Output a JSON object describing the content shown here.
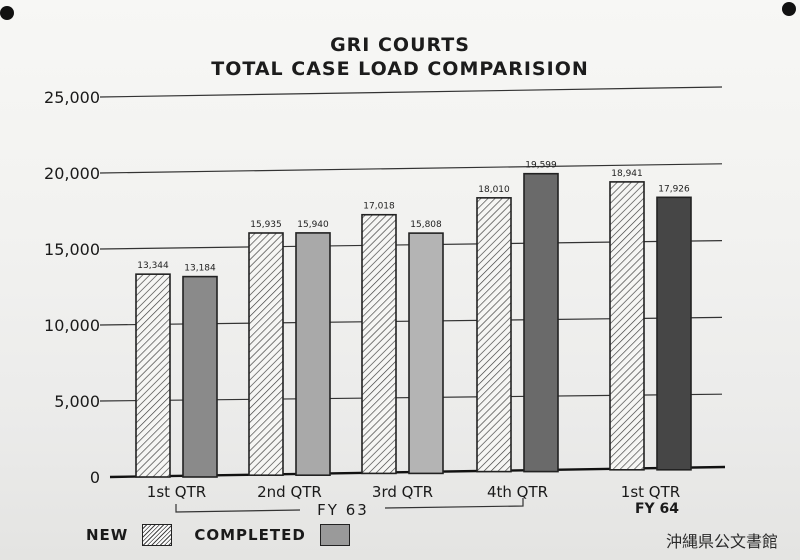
{
  "chart_data": {
    "type": "bar",
    "title": "GRI COURTS",
    "subtitle": "TOTAL CASE LOAD COMPARISION",
    "categories": [
      "1st QTR",
      "2nd QTR",
      "3rd QTR",
      "4th QTR",
      "1st QTR"
    ],
    "group_labels": [
      {
        "label": "FY 63"
      },
      {
        "label": "FY 64"
      }
    ],
    "yticks": [
      "0",
      "5,000",
      "10,000",
      "15,000",
      "20,000",
      "25,000"
    ],
    "ylim": [
      0,
      25000
    ],
    "grid": true,
    "legend_position": "bottom-left",
    "series": [
      {
        "name": "NEW",
        "values": [
          13344,
          15935,
          17018,
          18010,
          18941
        ],
        "labels": [
          "13,344",
          "15,935",
          "17,018",
          "18,010",
          "18,941"
        ],
        "pattern": "hatched"
      },
      {
        "name": "COMPLETED",
        "values": [
          13184,
          15940,
          15808,
          19599,
          17926
        ],
        "labels": [
          "13,184",
          "15,940",
          "15,808",
          "19,599",
          "17,926"
        ],
        "colors": [
          "#8a8a8a",
          "#a9a9a9",
          "#b4b4b4",
          "#6a6a6a",
          "#464646"
        ]
      }
    ]
  },
  "legend": {
    "new_label": "NEW",
    "completed_label": "COMPLETED"
  },
  "watermark": "沖縄県公文書館"
}
